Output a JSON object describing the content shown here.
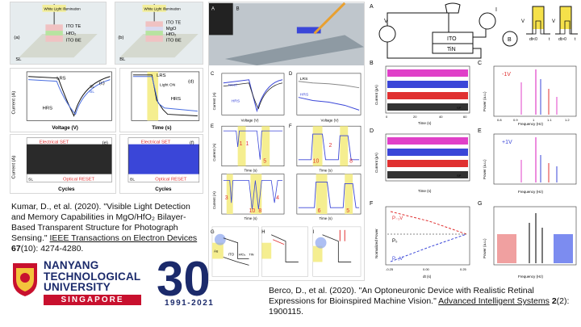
{
  "left_citation": {
    "text_before": "Kumar, D., et al. (2020). \"Visible Light Detection and Memory Capabilities in MgO/HfO₂ Bilayer-Based Transparent Structure for Photograph Sensing.\" ",
    "journal": "IEEE Transactions on Electron Devices",
    "volume": "67",
    "issue_pages": "(10): 4274-4280."
  },
  "right_citation": {
    "text_before": "Berco, D., et al. (2020). \"An Optoneuronic Device with Realistic Retinal Expressions for Bioinspired Machine Vision.\" ",
    "journal": "Advanced Intelligent Systems",
    "volume": "2",
    "issue_pages": "(2): 1900115."
  },
  "logo": {
    "line1": "NANYANG",
    "line2": "TECHNOLOGICAL",
    "line3": "UNIVERSITY",
    "country": "SINGAPORE",
    "anniversary": "30",
    "years": "1991-2021"
  },
  "figure_left": {
    "a": {
      "label": "(a)",
      "light": "White Light Illumination",
      "layers": [
        "ITO TE",
        "HfO₂",
        "ITO BE"
      ],
      "device": "SL"
    },
    "b": {
      "label": "(b)",
      "light": "White Light Illumination",
      "layers": [
        "ITO TE",
        "MgO",
        "HfO₂",
        "ITO BE"
      ],
      "device": "BL"
    },
    "c": {
      "label": "(c)",
      "ylabel": "Current (A)",
      "xlabel": "Voltage (V)",
      "lrs": "LRS",
      "hrs": "HRS",
      "legend": [
        "SL",
        "BL"
      ]
    },
    "d": {
      "label": "(d)",
      "ylabel": "Current (A)",
      "xlabel": "Time (s)",
      "lrs": "LRS",
      "light": "Light ON",
      "hrs": "HRS",
      "legend": [
        "SL",
        "BL"
      ]
    },
    "e": {
      "label": "(e)",
      "ylabel": "Current (A)",
      "xlabel": "Cycles",
      "top": "Electrical SET",
      "bottom": "Optical RESET",
      "device": "SL"
    },
    "f": {
      "label": "(f)",
      "xlabel": "Cycles",
      "top": "Electrical SET",
      "bottom": "Optical RESET",
      "device": "BL"
    }
  },
  "figure_mid": {
    "panel_a": "A",
    "panel_b": "B",
    "c": {
      "label": "C",
      "reset": "reset",
      "hrs": "HRS",
      "ylabel": "Current (A)",
      "xlabel": "Voltage (V)"
    },
    "d": {
      "label": "D",
      "lrs": "LRS",
      "hrs": "HRS",
      "xlabel": "Voltage (V)"
    },
    "e": {
      "label": "E",
      "ylabel": "Current (A)",
      "xlabel": "Time (s)",
      "marks": [
        "1",
        "1",
        "5"
      ]
    },
    "f": {
      "label": "F",
      "xlabel": "Time (s)",
      "marks": [
        "10",
        "2",
        "8"
      ]
    },
    "e2": {
      "ylabel": "Current (A)",
      "xlabel": "Time (s)",
      "marks": [
        "3",
        "10",
        "8",
        "4"
      ]
    },
    "f2": {
      "xlabel": "Time (s)",
      "marks": [
        "6",
        "5"
      ]
    },
    "g": {
      "label": "G",
      "layers": [
        "Au",
        "ITO",
        "HfO₂",
        "TiN"
      ]
    },
    "h": {
      "label": "H"
    },
    "i": {
      "label": "I"
    }
  },
  "figure_right": {
    "a": {
      "label": "A",
      "stack": [
        "ITO",
        "TiN"
      ],
      "nodes": [
        "V",
        "I",
        "B"
      ]
    },
    "pulse1": {
      "v": "V",
      "axis": "dt<0",
      "t": "t"
    },
    "pulse2": {
      "v": "V",
      "axis": "dt>0",
      "t": "t"
    },
    "b": {
      "label": "B",
      "ylabel": "Current (pA)",
      "xlabel": "Time (s)",
      "tags": [
        "0.25 s",
        "0.25 s",
        "0.0 s",
        "SP"
      ]
    },
    "c": {
      "label": "C",
      "ylabel": "Power (a.u.)",
      "xlabel": "Frequency (Hz)",
      "tag": "-1V"
    },
    "d": {
      "label": "D",
      "ylabel": "Current (pA)",
      "xlabel": "Time (s)",
      "tags": [
        "0.25 s",
        "0.25 s",
        "0.0 s",
        "SP"
      ]
    },
    "e": {
      "label": "E",
      "ylabel": "Power (a.u.)",
      "xlabel": "Frequency (Hz)",
      "tag": "+1V"
    },
    "f": {
      "label": "F",
      "ylabel": "Normalized Power",
      "xlabel": "dt (s)",
      "p_top": "P₋₁V",
      "p0": "P₀",
      "p_bot": "P₋₁V"
    },
    "g": {
      "label": "G",
      "ylabel": "Power (a.u.)",
      "xlabel": "Frequency (Hz)"
    },
    "ticks_freq": [
      "0.8",
      "0.9",
      "1",
      "1.1",
      "1.2"
    ],
    "ticks_time": [
      "0",
      "20",
      "40",
      "60"
    ],
    "ticks_dt": [
      "-0.25",
      "0.00",
      "0.25"
    ]
  },
  "colors": {
    "pink": "#e040c8",
    "blue": "#3a46d8",
    "red": "#e03030",
    "navy": "#1b2a6b",
    "ntu_red": "#c8102e",
    "yellow_hl": "#f5ee90"
  }
}
